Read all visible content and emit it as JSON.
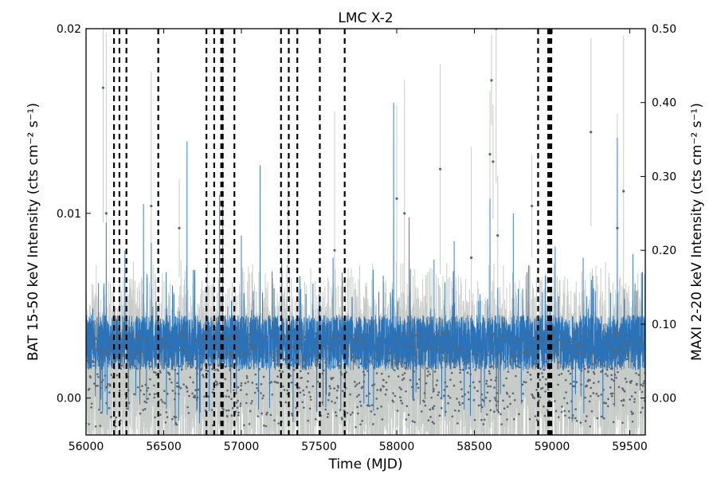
{
  "chart_data": {
    "type": "line",
    "title": "LMC X-2",
    "xlabel": "Time (MJD)",
    "ylabel_left": "BAT 15-50 keV Intensity (cts cm⁻² s⁻¹)",
    "ylabel_right": "MAXI 2-20 keV Intensity (cts cm⁻² s⁻¹)",
    "xlim": [
      56000,
      59600
    ],
    "ylim_left": [
      -0.002,
      0.02
    ],
    "ylim_right": [
      -0.05,
      0.5
    ],
    "x_ticks": [
      56000,
      56500,
      57000,
      57500,
      58000,
      58500,
      59000,
      59500
    ],
    "x_tick_labels": [
      "56000",
      "56500",
      "57000",
      "57500",
      "58000",
      "58500",
      "59000",
      "59500"
    ],
    "y_left_ticks": [
      0.0,
      0.01,
      0.02
    ],
    "y_left_tick_labels": [
      "0.00",
      "0.01",
      "0.02"
    ],
    "y_right_ticks": [
      0.0,
      0.1,
      0.2,
      0.3,
      0.4,
      0.5
    ],
    "y_right_tick_labels": [
      "0.00",
      "0.10",
      "0.20",
      "0.30",
      "0.40",
      "0.50"
    ],
    "grid": false,
    "series": [
      {
        "axis": "left",
        "style": "line",
        "color": "#2a73b8",
        "typical_range": [
          0.0015,
          0.0045
        ],
        "peaks": [
          [
            56130,
            0.0095
          ],
          [
            56250,
            0.008
          ],
          [
            56370,
            0.0105
          ],
          [
            56420,
            0.0084
          ],
          [
            56650,
            0.0139
          ],
          [
            56860,
            0.011
          ],
          [
            56880,
            0.0105
          ],
          [
            57000,
            0.0088
          ],
          [
            57120,
            0.0126
          ],
          [
            57260,
            0.0075
          ],
          [
            57590,
            0.0076
          ],
          [
            57980,
            0.016
          ],
          [
            58080,
            0.0098
          ],
          [
            58240,
            0.0075
          ],
          [
            58370,
            0.0085
          ],
          [
            58600,
            0.0108
          ],
          [
            58750,
            0.01
          ],
          [
            58850,
            0.0072
          ],
          [
            59020,
            0.0082
          ],
          [
            59200,
            0.0076
          ],
          [
            59420,
            0.0141
          ],
          [
            59520,
            0.0078
          ]
        ]
      },
      {
        "axis": "right",
        "style": "points-with-errorbars",
        "color": "#5a6570",
        "errorbar_color": "#c8ccc8",
        "typical_range": [
          -0.04,
          0.09
        ],
        "outliers": [
          [
            56110,
            0.42
          ],
          [
            56130,
            0.25
          ],
          [
            56420,
            0.26
          ],
          [
            56600,
            0.23
          ],
          [
            56880,
            0.26
          ],
          [
            57300,
            0.25
          ],
          [
            57600,
            0.2
          ],
          [
            58000,
            0.27
          ],
          [
            58050,
            0.25
          ],
          [
            58280,
            0.31
          ],
          [
            58480,
            0.19
          ],
          [
            58600,
            0.33
          ],
          [
            58610,
            0.43
          ],
          [
            58620,
            0.32
          ],
          [
            58640,
            0.5
          ],
          [
            58650,
            0.22
          ],
          [
            58870,
            0.26
          ],
          [
            59250,
            0.36
          ],
          [
            59420,
            0.23
          ],
          [
            59460,
            0.28
          ]
        ]
      }
    ],
    "vertical_lines": [
      56180,
      56215,
      56260,
      56465,
      56775,
      56825,
      56870,
      56880,
      56955,
      57255,
      57305,
      57360,
      57505,
      57665,
      58910,
      58975,
      58985,
      58995
    ],
    "vertical_line_style": "dashed",
    "vertical_line_color": "#000000"
  }
}
